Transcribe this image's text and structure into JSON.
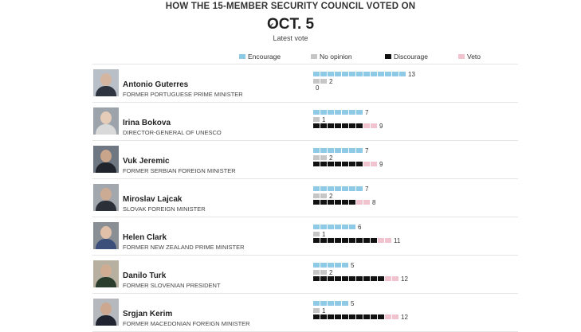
{
  "header": {
    "title": "HOW THE 15-MEMBER SECURITY COUNCIL VOTED ON",
    "back_icon": "chevron-left-icon",
    "back_glyph": "‹",
    "date": "OCT. 5",
    "subtitle": "Latest vote"
  },
  "legend": [
    {
      "label": "Encourage",
      "color": "#8ecae6"
    },
    {
      "label": "No opinion",
      "color": "#c6c6c6"
    },
    {
      "label": "Discourage",
      "color": "#111111"
    },
    {
      "label": "Veto",
      "color": "#f0c3cf"
    }
  ],
  "chart_data": {
    "type": "bar",
    "orientation": "horizontal",
    "categories": [
      "Antonio Guterres",
      "Irina Bokova",
      "Vuk Jeremic",
      "Miroslav Lajcak",
      "Helen Clark",
      "Danilo Turk",
      "Srgjan Kerim"
    ],
    "series": [
      {
        "name": "Encourage",
        "values": [
          13,
          7,
          7,
          7,
          6,
          5,
          5
        ],
        "color": "#8ecae6"
      },
      {
        "name": "No opinion",
        "values": [
          2,
          1,
          2,
          2,
          1,
          2,
          1
        ],
        "color": "#c6c6c6"
      },
      {
        "name": "Discourage",
        "values": [
          0,
          7,
          7,
          6,
          9,
          10,
          10
        ],
        "color": "#111111"
      },
      {
        "name": "Veto",
        "values": [
          0,
          2,
          2,
          2,
          2,
          2,
          2
        ],
        "color": "#f0c3cf"
      }
    ],
    "discourage_totals": [
      0,
      9,
      9,
      8,
      11,
      12,
      12
    ],
    "xlim": [
      0,
      15
    ]
  },
  "candidates": [
    {
      "name": "Antonio Guterres",
      "role": "FORMER PORTUGUESE PRIME MINISTER",
      "skin": "#d4b6a0",
      "suit": "#2e3440",
      "bg": "#b9bfc7"
    },
    {
      "name": "Irina Bokova",
      "role": "DIRECTOR-GENERAL OF UNESCO",
      "skin": "#e4ccb8",
      "suit": "#d9d9d9",
      "bg": "#9ca3ab"
    },
    {
      "name": "Vuk Jeremic",
      "role": "FORMER SERBIAN FOREIGN MINISTER",
      "skin": "#c9a58c",
      "suit": "#20242c",
      "bg": "#6f7782"
    },
    {
      "name": "Miroslav Lajcak",
      "role": "SLOVAK FOREIGN MINISTER",
      "skin": "#ccab94",
      "suit": "#2a2f38",
      "bg": "#a3a8ae"
    },
    {
      "name": "Helen Clark",
      "role": "FORMER NEW ZEALAND PRIME MINISTER",
      "skin": "#e0c0a8",
      "suit": "#3b4f7a",
      "bg": "#8a8f96"
    },
    {
      "name": "Danilo Turk",
      "role": "FORMER SLOVENIAN PRESIDENT",
      "skin": "#d0ad92",
      "suit": "#2b3e2e",
      "bg": "#b7b0a0"
    },
    {
      "name": "Srgjan Kerim",
      "role": "FORMER MACEDONIAN FOREIGN MINISTER",
      "skin": "#cda890",
      "suit": "#1f2430",
      "bg": "#b5b9be"
    }
  ]
}
